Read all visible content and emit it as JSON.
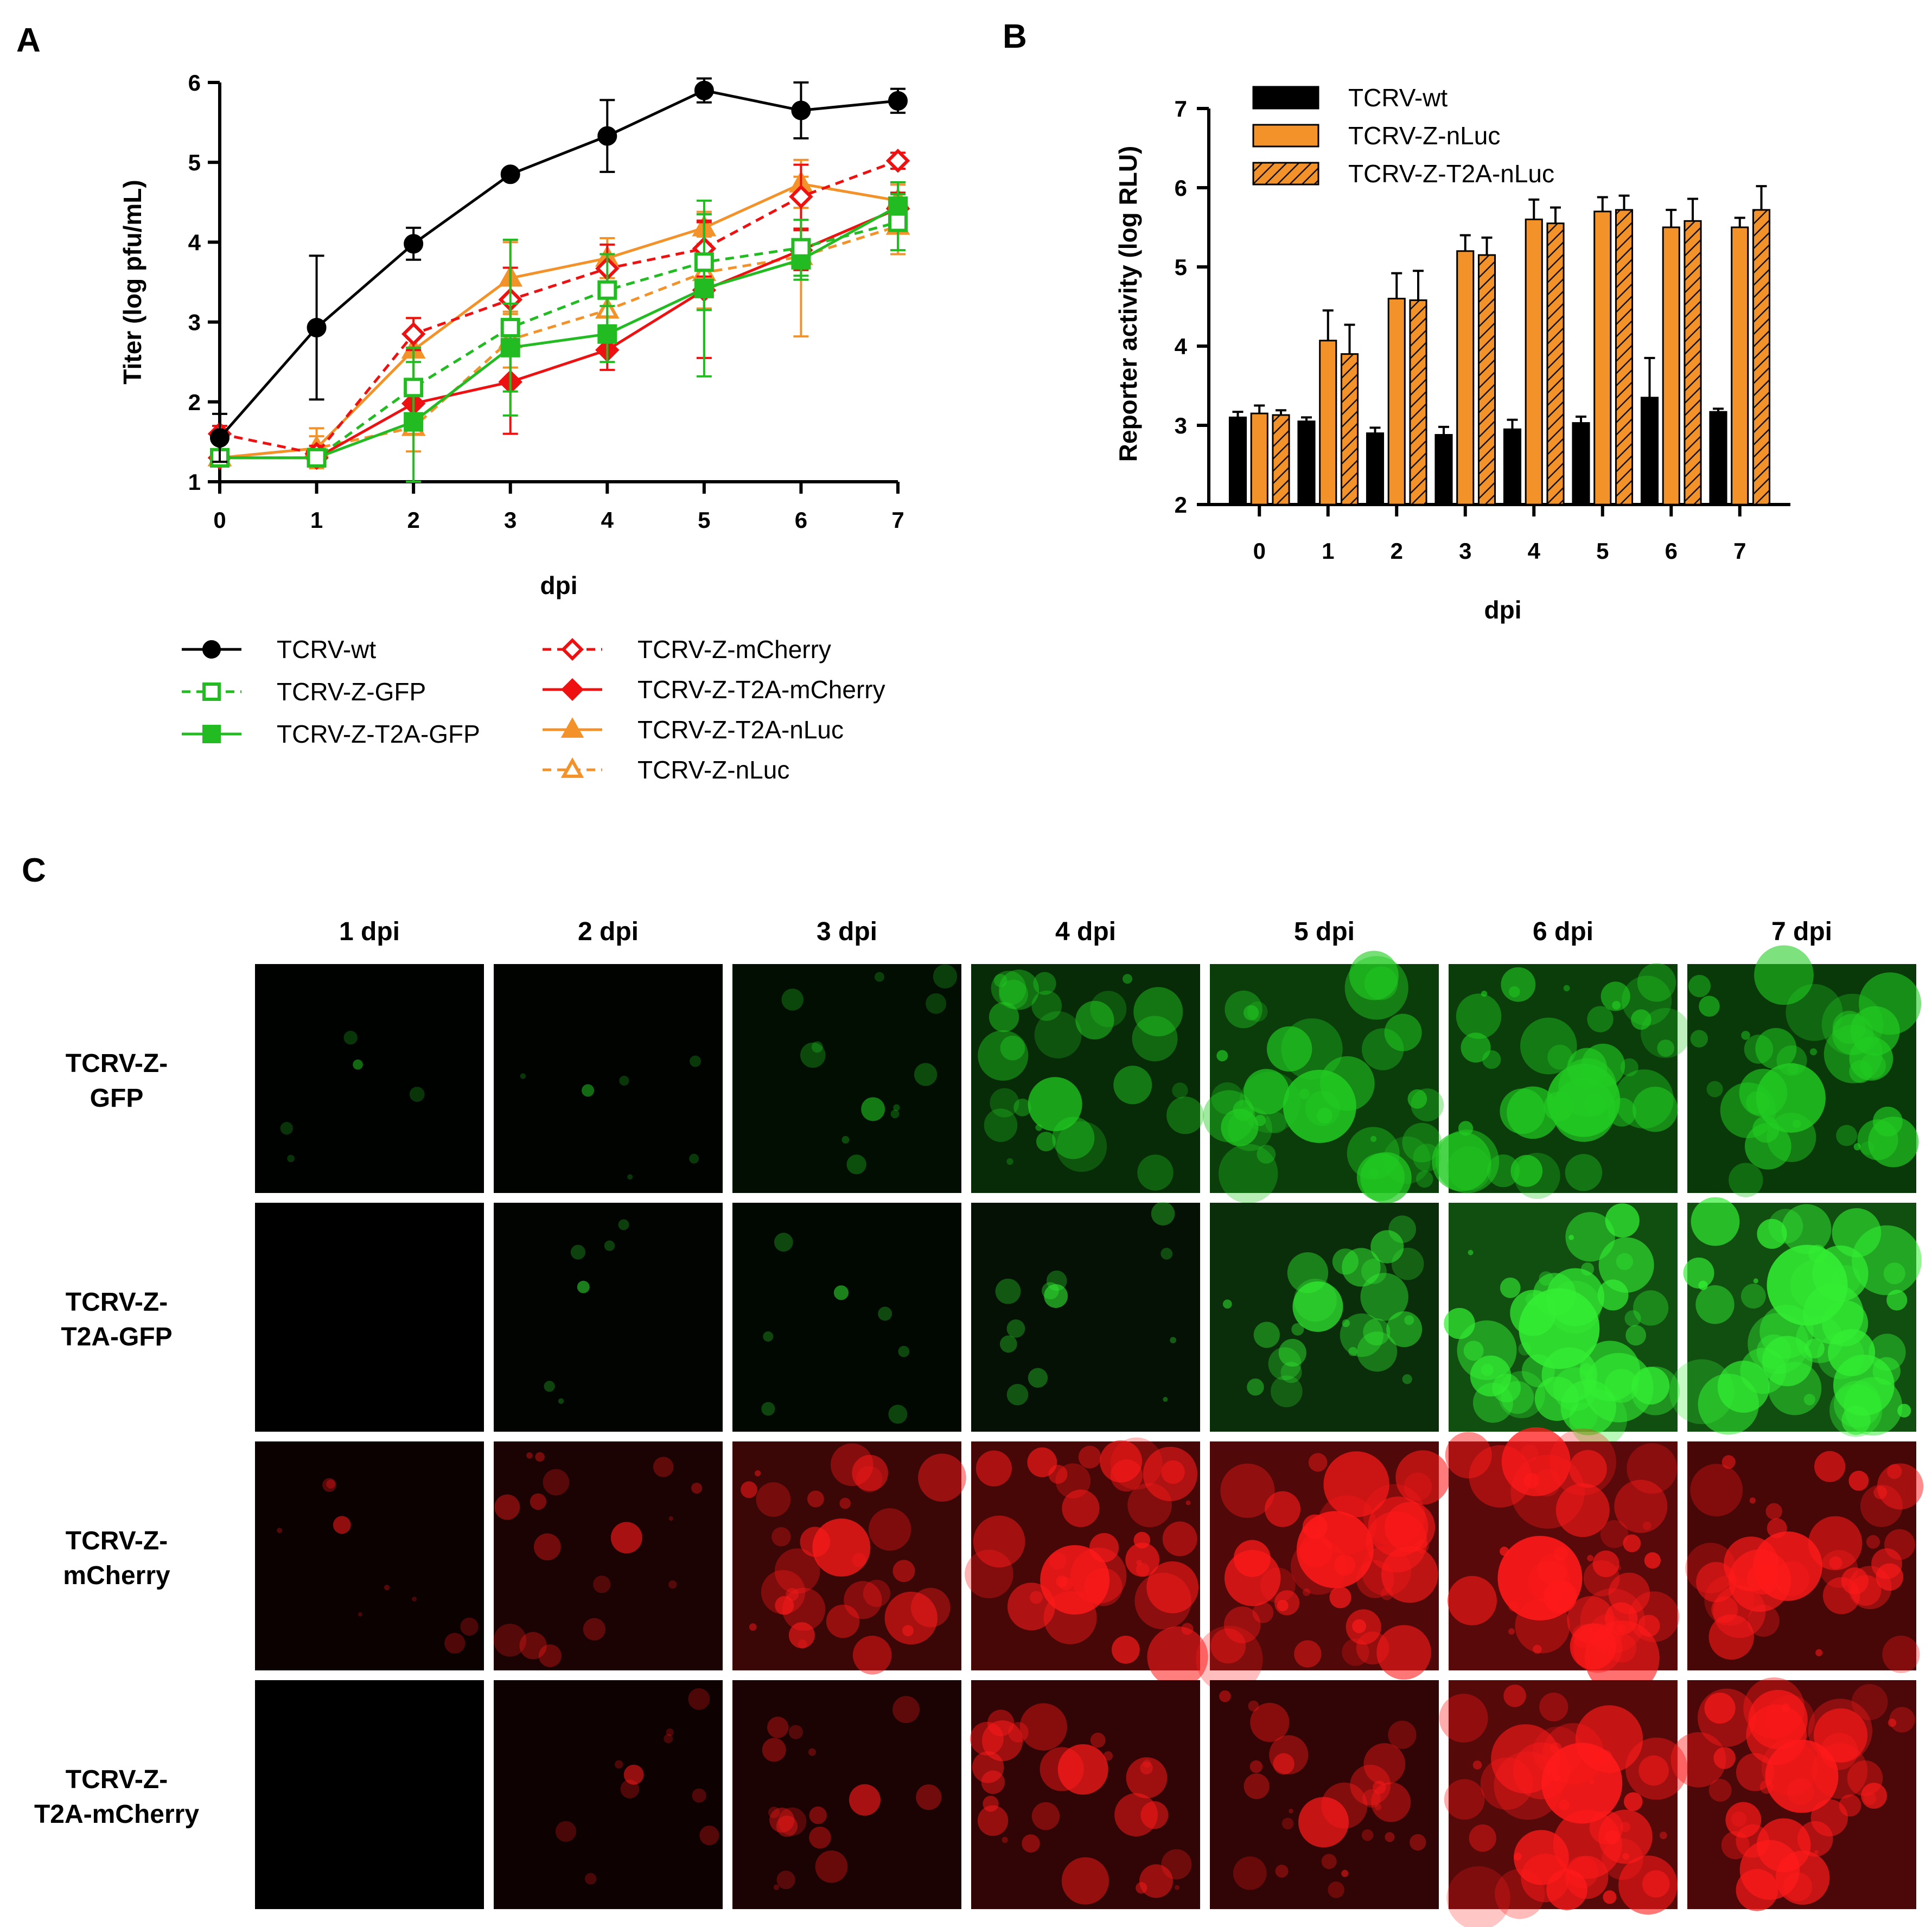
{
  "panels": {
    "a_letter": "A",
    "b_letter": "B",
    "c_letter": "C"
  },
  "colors": {
    "wt": "#000000",
    "gfp": "#22bb22",
    "mcherry": "#ee1111",
    "nluc": "#f4922a",
    "background": "#ffffff"
  },
  "chart_data": [
    {
      "id": "A",
      "type": "line",
      "xlabel": "dpi",
      "ylabel": "Titer (log pfu/mL)",
      "x": [
        0,
        1,
        2,
        3,
        4,
        5,
        6,
        7
      ],
      "xticks": [
        "0",
        "1",
        "2",
        "3",
        "4",
        "5",
        "6",
        "7"
      ],
      "ylim": [
        1,
        6
      ],
      "yticks": [
        "1",
        "2",
        "3",
        "4",
        "5",
        "6"
      ],
      "series": [
        {
          "name": "TCRV-wt",
          "color": "#000000",
          "dashed": false,
          "marker": "circle",
          "filled": true,
          "values": [
            1.55,
            2.93,
            3.98,
            4.85,
            5.33,
            5.9,
            5.65,
            5.77
          ],
          "err": [
            0.3,
            0.9,
            0.2,
            0.05,
            0.45,
            0.15,
            0.35,
            0.15
          ]
        },
        {
          "name": "TCRV-Z-GFP",
          "color": "#22bb22",
          "dashed": true,
          "marker": "square",
          "filled": false,
          "values": [
            1.3,
            1.3,
            2.18,
            2.93,
            3.4,
            3.75,
            3.93,
            4.25
          ],
          "err": [
            0.1,
            0.1,
            0.5,
            1.1,
            0.45,
            0.6,
            0.35,
            0.35
          ]
        },
        {
          "name": "TCRV-Z-T2A-GFP",
          "color": "#22bb22",
          "dashed": false,
          "marker": "square",
          "filled": true,
          "values": [
            1.3,
            1.3,
            1.75,
            2.68,
            2.85,
            3.42,
            3.78,
            4.45
          ],
          "err": [
            0.1,
            0.1,
            0.75,
            0.55,
            0.35,
            1.1,
            0.25,
            0.3
          ]
        },
        {
          "name": "TCRV-Z-mCherry",
          "color": "#ee1111",
          "dashed": true,
          "marker": "diamond",
          "filled": false,
          "values": [
            1.6,
            1.35,
            2.85,
            3.28,
            3.67,
            3.92,
            4.57,
            5.02
          ],
          "err": [
            0.1,
            0.1,
            0.2,
            0.4,
            0.3,
            0.35,
            0.4,
            0.1
          ]
        },
        {
          "name": "TCRV-Z-T2A-mCherry",
          "color": "#ee1111",
          "dashed": false,
          "marker": "diamond",
          "filled": true,
          "values": [
            1.3,
            1.3,
            1.98,
            2.25,
            2.65,
            3.4,
            3.9,
            4.42
          ],
          "err": [
            0.1,
            0.1,
            0.3,
            0.65,
            0.25,
            0.85,
            0.25,
            0.2
          ]
        },
        {
          "name": "TCRV-Z-T2A-nLuc",
          "color": "#f4922a",
          "dashed": false,
          "marker": "triangle",
          "filled": true,
          "values": [
            1.3,
            1.42,
            2.65,
            3.55,
            3.8,
            4.18,
            4.73,
            4.52
          ],
          "err": [
            0.1,
            0.25,
            0.4,
            0.45,
            0.25,
            0.2,
            0.3,
            0.2
          ]
        },
        {
          "name": "TCRV-Z-nLuc",
          "color": "#f4922a",
          "dashed": true,
          "marker": "triangle",
          "filled": false,
          "values": [
            1.3,
            1.42,
            1.68,
            2.78,
            3.15,
            3.62,
            3.82,
            4.2
          ],
          "err": [
            0.1,
            0.15,
            0.3,
            0.35,
            0.3,
            0.45,
            1.0,
            0.35
          ]
        }
      ],
      "legend": {
        "col1": [
          "TCRV-wt",
          "TCRV-Z-GFP",
          "TCRV-Z-T2A-GFP"
        ],
        "col2": [
          "TCRV-Z-mCherry",
          "TCRV-Z-T2A-mCherry",
          "TCRV-Z-T2A-nLuc",
          "TCRV-Z-nLuc"
        ]
      }
    },
    {
      "id": "B",
      "type": "bar",
      "xlabel": "dpi",
      "ylabel": "Reporter activity (log RLU)",
      "categories": [
        "0",
        "1",
        "2",
        "3",
        "4",
        "5",
        "6",
        "7"
      ],
      "ylim": [
        2,
        7
      ],
      "yticks": [
        "2",
        "3",
        "4",
        "5",
        "6",
        "7"
      ],
      "series": [
        {
          "name": "TCRV-wt",
          "color": "#000000",
          "hatched": false,
          "values": [
            3.1,
            3.05,
            2.9,
            2.88,
            2.95,
            3.03,
            3.35,
            3.17
          ],
          "err": [
            0.07,
            0.05,
            0.07,
            0.1,
            0.12,
            0.08,
            0.5,
            0.04
          ]
        },
        {
          "name": "TCRV-Z-nLuc",
          "color": "#f4922a",
          "hatched": false,
          "values": [
            3.15,
            4.07,
            4.6,
            5.2,
            5.6,
            5.7,
            5.5,
            5.5
          ],
          "err": [
            0.1,
            0.38,
            0.32,
            0.2,
            0.25,
            0.18,
            0.22,
            0.12
          ]
        },
        {
          "name": "TCRV-Z-T2A-nLuc",
          "color": "#f4922a",
          "hatched": true,
          "values": [
            3.13,
            3.9,
            4.58,
            5.15,
            5.55,
            5.72,
            5.58,
            5.72
          ],
          "err": [
            0.06,
            0.37,
            0.37,
            0.22,
            0.2,
            0.18,
            0.28,
            0.3
          ]
        }
      ]
    }
  ],
  "panel_c": {
    "columns": [
      "1 dpi",
      "2 dpi",
      "3 dpi",
      "4 dpi",
      "5 dpi",
      "6 dpi",
      "7 dpi"
    ],
    "rows": [
      {
        "label1": "TCRV-Z-",
        "label2": "GFP",
        "color": "#22cc22",
        "intensity": [
          0.02,
          0.05,
          0.2,
          0.6,
          0.85,
          0.85,
          0.8
        ]
      },
      {
        "label1": "TCRV-Z-",
        "label2": "T2A-GFP",
        "color": "#33ee33",
        "intensity": [
          0.0,
          0.05,
          0.08,
          0.2,
          0.55,
          0.95,
          0.95
        ]
      },
      {
        "label1": "TCRV-Z-",
        "label2": "mCherry",
        "color": "#ff1a1a",
        "intensity": [
          0.12,
          0.3,
          0.65,
          0.8,
          0.9,
          1.0,
          0.8
        ]
      },
      {
        "label1": "TCRV-Z-",
        "label2": "T2A-mCherry",
        "color": "#ff1a1a",
        "intensity": [
          0.0,
          0.15,
          0.3,
          0.55,
          0.55,
          0.95,
          0.85
        ]
      }
    ]
  }
}
